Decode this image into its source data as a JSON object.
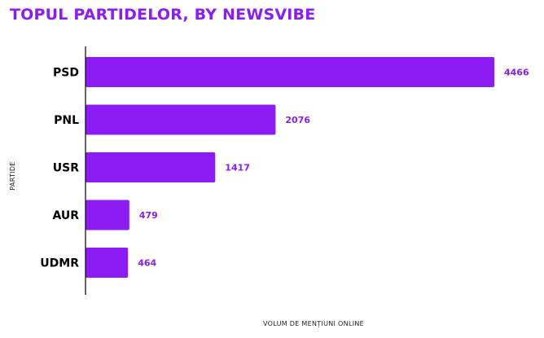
{
  "header": {
    "title": "TOPUL PARTIDELOR, BY NEWSVIBE"
  },
  "colors": {
    "accent": "#8B1CF5",
    "bar": "#8B1CF5",
    "value_label": "#8B1CF5",
    "axis_line": "#000000"
  },
  "chart_data": {
    "type": "bar",
    "orientation": "horizontal",
    "title": "TOPUL PARTIDELOR, BY NEWSVIBE",
    "categories": [
      "PSD",
      "PNL",
      "USR",
      "AUR",
      "UDMR"
    ],
    "values": [
      4466,
      2076,
      1417,
      479,
      464
    ],
    "xlabel": "VOLUM DE MENȚIUNI ONLINE",
    "ylabel": "PARTIDE",
    "xlim": [
      0,
      4466
    ],
    "grid": false,
    "legend": "none",
    "data_labels": true
  }
}
